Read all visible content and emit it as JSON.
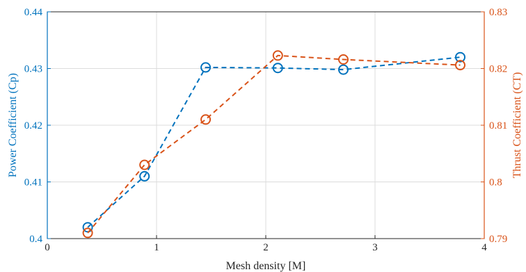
{
  "chart_data": {
    "type": "line",
    "title": "",
    "xlabel": "Mesh density [M]",
    "xlim": [
      0,
      4
    ],
    "x_ticks": [
      "0",
      "1",
      "2",
      "3",
      "4"
    ],
    "grid": true,
    "y_left": {
      "label": "Power Coefficient (Cp)",
      "lim": [
        0.4,
        0.44
      ],
      "ticks": [
        "0.4",
        "0.41",
        "0.42",
        "0.43",
        "0.44"
      ],
      "color": "#0072BD"
    },
    "y_right": {
      "label": "Thrust Coefficient (CT)",
      "lim": [
        0.79,
        0.83
      ],
      "ticks": [
        "0.79",
        "0.8",
        "0.81",
        "0.82",
        "0.83"
      ],
      "color": "#D95319"
    },
    "series": [
      {
        "axis": "left",
        "color": "#0072BD",
        "x": [
          0.37,
          0.89,
          1.45,
          2.11,
          2.71,
          3.78
        ],
        "y": [
          0.402,
          0.411,
          0.4302,
          0.4301,
          0.4298,
          0.432
        ]
      },
      {
        "axis": "right",
        "color": "#D95319",
        "x": [
          0.37,
          0.89,
          1.45,
          2.11,
          2.71,
          3.78
        ],
        "y": [
          0.791,
          0.803,
          0.811,
          0.8223,
          0.8216,
          0.8206
        ]
      }
    ]
  }
}
